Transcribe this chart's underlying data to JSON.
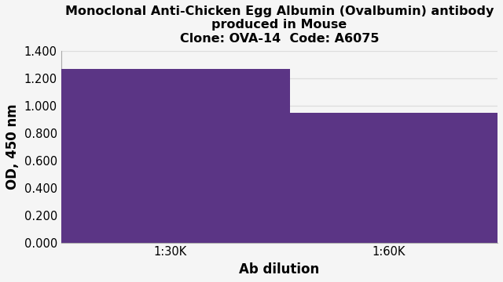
{
  "title_line1": "Monoclonal Anti-Chicken Egg Albumin (Ovalbumin) antibody",
  "title_line2": "produced in Mouse",
  "title_line3": "Clone: OVA-14  Code: A6075",
  "categories": [
    "1:30K",
    "1:60K"
  ],
  "values": [
    1.265,
    0.95
  ],
  "bar_color": "#5b3585",
  "xlabel": "Ab dilution",
  "ylabel": "OD, 450 nm",
  "ylim": [
    0.0,
    1.4
  ],
  "yticks": [
    0.0,
    0.2,
    0.4,
    0.6,
    0.8,
    1.0,
    1.2,
    1.4
  ],
  "ytick_labels": [
    "0.000",
    "0.200",
    "0.400",
    "0.600",
    "0.800",
    "1.000",
    "1.200",
    "1.400"
  ],
  "background_color": "#f5f5f5",
  "plot_bg_color": "#f5f5f5",
  "grid_color": "#dddddd",
  "title_fontsize": 11.5,
  "axis_label_fontsize": 12,
  "tick_fontsize": 10.5,
  "bar_width": 0.55,
  "bar_positions": [
    0.25,
    0.75
  ],
  "xlim": [
    0.0,
    1.0
  ]
}
